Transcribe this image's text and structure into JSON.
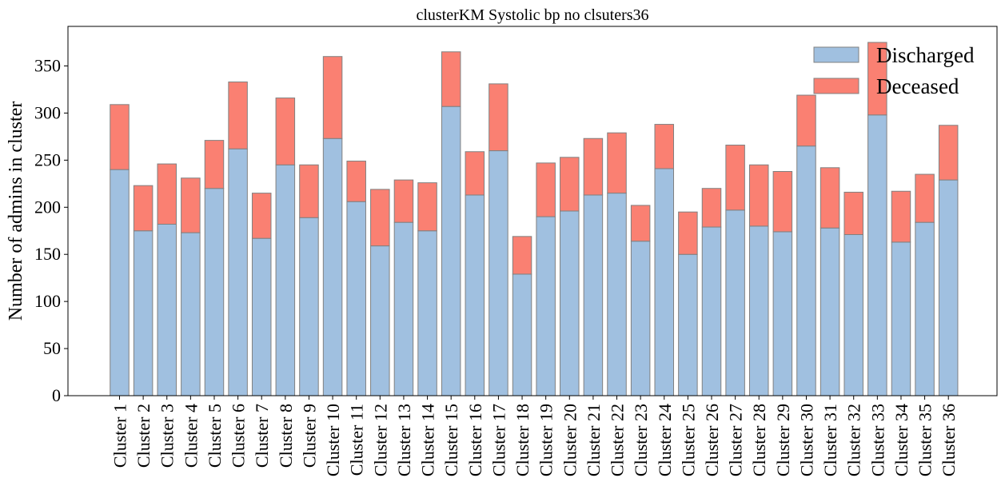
{
  "chart_data": {
    "type": "bar",
    "stacked": true,
    "title": "clusterKM Systolic bp no clsuters36",
    "xlabel": "",
    "ylabel": "Number of admins in cluster",
    "ylim": [
      0,
      392
    ],
    "yticks": [
      0,
      50,
      100,
      150,
      200,
      250,
      300,
      350
    ],
    "grid": false,
    "legend_position": "top-right",
    "categories": [
      "Cluster 1",
      "Cluster 2",
      "Cluster 3",
      "Cluster 4",
      "Cluster 5",
      "Cluster 6",
      "Cluster 7",
      "Cluster 8",
      "Cluster 9",
      "Cluster 10",
      "Cluster 11",
      "Cluster 12",
      "Cluster 13",
      "Cluster 14",
      "Cluster 15",
      "Cluster 16",
      "Cluster 17",
      "Cluster 18",
      "Cluster 19",
      "Cluster 20",
      "Cluster 21",
      "Cluster 22",
      "Cluster 23",
      "Cluster 24",
      "Cluster 25",
      "Cluster 26",
      "Cluster 27",
      "Cluster 28",
      "Cluster 29",
      "Cluster 30",
      "Cluster 31",
      "Cluster 32",
      "Cluster 33",
      "Cluster 34",
      "Cluster 35",
      "Cluster 36"
    ],
    "series": [
      {
        "name": "Discharged",
        "color": "#a0c0e0",
        "values": [
          240,
          175,
          182,
          173,
          220,
          262,
          167,
          245,
          189,
          273,
          206,
          159,
          184,
          175,
          307,
          213,
          260,
          129,
          190,
          196,
          213,
          215,
          164,
          241,
          150,
          179,
          197,
          180,
          174,
          265,
          178,
          171,
          298,
          163,
          184,
          229
        ]
      },
      {
        "name": "Deceased",
        "color": "#fa8072",
        "values": [
          69,
          48,
          64,
          58,
          51,
          71,
          48,
          71,
          56,
          87,
          43,
          60,
          45,
          51,
          58,
          46,
          71,
          40,
          57,
          57,
          60,
          64,
          38,
          47,
          45,
          41,
          69,
          65,
          64,
          54,
          64,
          45,
          77,
          54,
          51,
          58
        ]
      }
    ],
    "edge_color": "#808080"
  }
}
